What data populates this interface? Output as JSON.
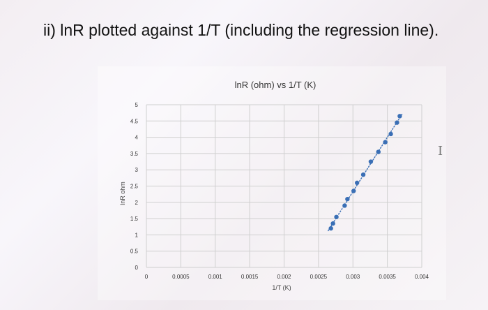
{
  "page": {
    "heading": "ii) lnR plotted against 1/T (including the regression line).",
    "cursor_glyph": "I"
  },
  "chart_data": {
    "type": "scatter",
    "title": "lnR (ohm) vs 1/T (K)",
    "xlabel": "1/T (K)",
    "ylabel": "lnR ohm",
    "xlim": [
      0,
      0.004
    ],
    "ylim": [
      0,
      5
    ],
    "x_ticks": [
      {
        "value": 0,
        "label": "0"
      },
      {
        "value": 0.0005,
        "label": "0.0005"
      },
      {
        "value": 0.001,
        "label": "0.001"
      },
      {
        "value": 0.0015,
        "label": "0.0015"
      },
      {
        "value": 0.002,
        "label": "0.002"
      },
      {
        "value": 0.0025,
        "label": "0.0025"
      },
      {
        "value": 0.003,
        "label": "0.003"
      },
      {
        "value": 0.0035,
        "label": "0.0035"
      },
      {
        "value": 0.004,
        "label": "0.004"
      }
    ],
    "y_ticks": [
      {
        "value": 0,
        "label": "0"
      },
      {
        "value": 0.5,
        "label": "0.5"
      },
      {
        "value": 1,
        "label": "1"
      },
      {
        "value": 1.5,
        "label": "1.5"
      },
      {
        "value": 2,
        "label": "2"
      },
      {
        "value": 2.5,
        "label": "2.5"
      },
      {
        "value": 3,
        "label": "3"
      },
      {
        "value": 3.5,
        "label": "3.5"
      },
      {
        "value": 4,
        "label": "4"
      },
      {
        "value": 4.5,
        "label": "4.5"
      },
      {
        "value": 5,
        "label": "5"
      }
    ],
    "grid": true,
    "legend": "none",
    "series": [
      {
        "color": "#3a6fb5",
        "points": [
          {
            "x": 0.00268,
            "y": 1.2
          },
          {
            "x": 0.00271,
            "y": 1.35
          },
          {
            "x": 0.00276,
            "y": 1.55
          },
          {
            "x": 0.00288,
            "y": 1.9
          },
          {
            "x": 0.00292,
            "y": 2.1
          },
          {
            "x": 0.00301,
            "y": 2.35
          },
          {
            "x": 0.00306,
            "y": 2.6
          },
          {
            "x": 0.00315,
            "y": 2.85
          },
          {
            "x": 0.00326,
            "y": 3.25
          },
          {
            "x": 0.00337,
            "y": 3.55
          },
          {
            "x": 0.00347,
            "y": 3.85
          },
          {
            "x": 0.00355,
            "y": 4.1
          },
          {
            "x": 0.00364,
            "y": 4.45
          },
          {
            "x": 0.00368,
            "y": 4.65
          }
        ]
      }
    ],
    "trendline": {
      "type": "linear",
      "color": "#3a6fb5",
      "style": "dotted",
      "x_range": [
        0.00264,
        0.00372
      ]
    }
  }
}
